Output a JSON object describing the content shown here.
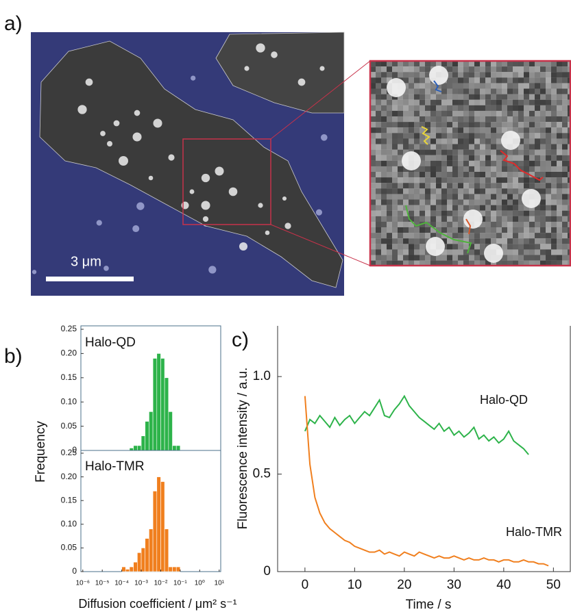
{
  "panels": {
    "a": {
      "label": "a)",
      "scale_label": "3 μm"
    },
    "b": {
      "label": "b)"
    },
    "c": {
      "label": "c)"
    }
  },
  "chart_data": [
    {
      "type": "histogram",
      "title": "Halo-QD",
      "ylabel": "Frequency",
      "color": "#2db34a",
      "xscale": "log",
      "bins": [
        0.0001,
        0.000158,
        0.000251,
        0.000398,
        0.000631,
        0.001,
        0.00158,
        0.00251,
        0.00398,
        0.00631,
        0.01,
        0.0158,
        0.0251,
        0.0398,
        0.0631,
        0.1,
        0.158,
        0.251
      ],
      "values": [
        0,
        0,
        0.005,
        0.01,
        0.01,
        0.03,
        0.06,
        0.08,
        0.19,
        0.2,
        0.19,
        0.15,
        0.08,
        0.01,
        0.01,
        0,
        0
      ],
      "xlim": [
        8e-07,
        12
      ],
      "ylim": [
        0,
        0.25
      ],
      "yticks": [
        0,
        0.05,
        {
          "value": 0.1,
          "label": "0.10"
        },
        0.15,
        {
          "value": 0.2,
          "label": "0.20"
        },
        0.25
      ]
    },
    {
      "type": "histogram",
      "title": "Halo-TMR",
      "xlabel": "Diffusion coefficient / μm² s⁻¹",
      "color": "#f07f1e",
      "xscale": "log",
      "bins": [
        0.0001,
        0.000158,
        0.000251,
        0.000398,
        0.000631,
        0.001,
        0.00158,
        0.00251,
        0.00398,
        0.00631,
        0.01,
        0.0158,
        0.0251,
        0.0398,
        0.0631,
        0.1,
        0.158,
        0.251
      ],
      "values": [
        0.01,
        0.005,
        0.01,
        0.02,
        0.04,
        0.05,
        0.07,
        0.09,
        0.17,
        0.2,
        0.19,
        0.09,
        0.01,
        0.01,
        0.01,
        0,
        0
      ],
      "xlim": [
        8e-07,
        12
      ],
      "ylim": [
        0,
        0.25
      ],
      "yticks": [
        0,
        0.05,
        {
          "value": 0.1,
          "label": "0.10"
        },
        0.15,
        {
          "value": 0.2,
          "label": "0.20"
        },
        0.25
      ],
      "xticks": [
        {
          "value": 1e-06,
          "label": "10⁻⁶"
        },
        {
          "value": 1e-05,
          "label": "10⁻⁵"
        },
        {
          "value": 0.0001,
          "label": "10⁻⁴"
        },
        {
          "value": 0.001,
          "label": "10⁻³"
        },
        {
          "value": 0.01,
          "label": "10⁻²"
        },
        {
          "value": 0.1,
          "label": "10⁻¹"
        },
        {
          "value": 1,
          "label": "10⁰"
        },
        {
          "value": 10,
          "label": "10¹"
        }
      ]
    },
    {
      "type": "line",
      "xlabel": "Time / s",
      "ylabel": "Fluorescence intensity / a.u.",
      "x": [
        0,
        1,
        2,
        3,
        4,
        5,
        6,
        7,
        8,
        9,
        10,
        11,
        12,
        13,
        14,
        15,
        16,
        17,
        18,
        19,
        20,
        21,
        22,
        23,
        24,
        25,
        26,
        27,
        28,
        29,
        30,
        31,
        32,
        33,
        34,
        35,
        36,
        37,
        38,
        39,
        40,
        41,
        42,
        43,
        44,
        45,
        46,
        47,
        48,
        49
      ],
      "xlim": [
        -5.5,
        53.4
      ],
      "ylim": [
        0,
        1.26
      ],
      "xticks": [
        0,
        10,
        20,
        30,
        40,
        50
      ],
      "yticks": [
        0,
        0.5,
        {
          "value": 1,
          "label": "1.0"
        }
      ],
      "series": [
        {
          "name": "Halo-QD",
          "color": "#2db34a",
          "values": [
            0.72,
            0.78,
            0.76,
            0.8,
            0.77,
            0.74,
            0.79,
            0.75,
            0.78,
            0.8,
            0.76,
            0.79,
            0.82,
            0.8,
            0.84,
            0.88,
            0.8,
            0.79,
            0.83,
            0.86,
            0.9,
            0.85,
            0.82,
            0.79,
            0.77,
            0.75,
            0.73,
            0.76,
            0.72,
            0.74,
            0.7,
            0.72,
            0.69,
            0.71,
            0.74,
            0.68,
            0.7,
            0.67,
            0.69,
            0.66,
            0.68,
            0.72,
            0.67,
            0.65,
            0.63,
            0.6,
            null,
            null,
            null,
            null
          ]
        },
        {
          "name": "Halo-TMR",
          "color": "#f07f1e",
          "values": [
            0.9,
            0.55,
            0.38,
            0.3,
            0.25,
            0.22,
            0.2,
            0.18,
            0.16,
            0.15,
            0.13,
            0.12,
            0.11,
            0.1,
            0.1,
            0.11,
            0.09,
            0.1,
            0.09,
            0.08,
            0.1,
            0.09,
            0.08,
            0.1,
            0.09,
            0.08,
            0.07,
            0.08,
            0.07,
            0.07,
            0.08,
            0.07,
            0.06,
            0.07,
            0.06,
            0.06,
            0.07,
            0.06,
            0.06,
            0.05,
            0.06,
            0.06,
            0.05,
            0.05,
            0.06,
            0.05,
            0.05,
            0.04,
            0.04,
            0.03
          ]
        }
      ]
    }
  ]
}
